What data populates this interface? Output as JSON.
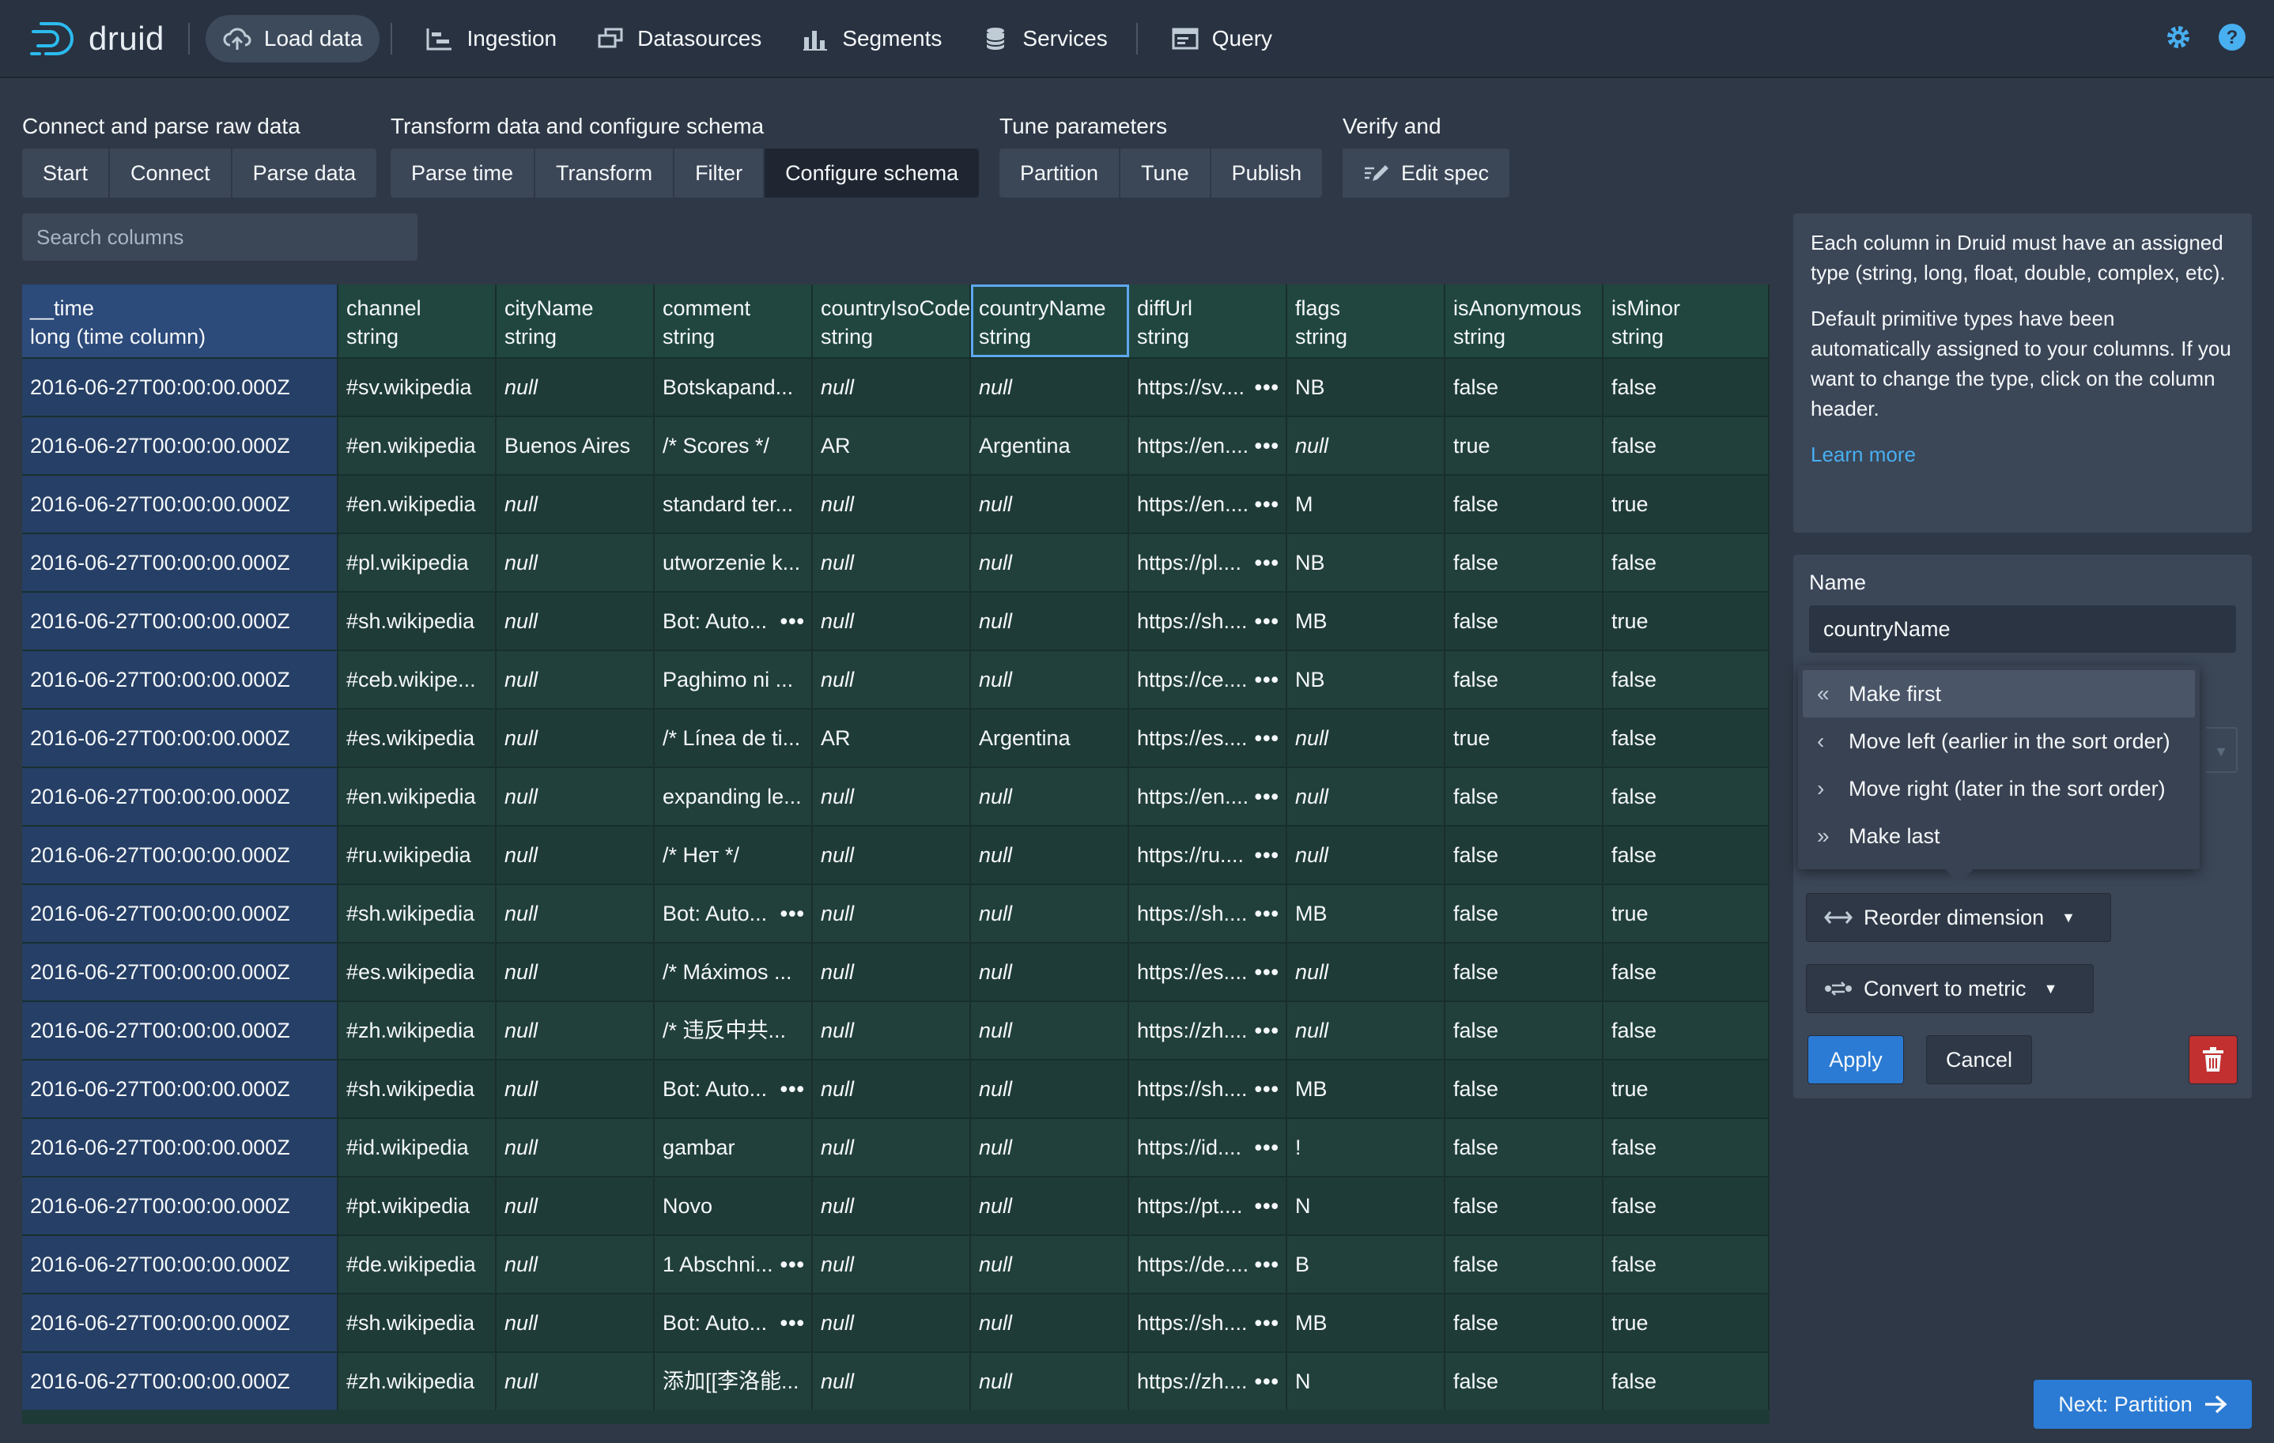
{
  "nav": {
    "logo_text": "druid",
    "items": [
      {
        "label": "Load data",
        "icon": "cloud-upload-icon"
      },
      {
        "label": "Ingestion",
        "icon": "gantt-icon"
      },
      {
        "label": "Datasources",
        "icon": "multi-select-icon"
      },
      {
        "label": "Segments",
        "icon": "stacked-chart-icon"
      },
      {
        "label": "Services",
        "icon": "database-icon"
      },
      {
        "label": "Query",
        "icon": "application-icon"
      }
    ]
  },
  "steps": {
    "groups": [
      {
        "title": "Connect and parse raw data",
        "steps": [
          "Start",
          "Connect",
          "Parse data"
        ]
      },
      {
        "title": "Transform data and configure schema",
        "steps": [
          "Parse time",
          "Transform",
          "Filter",
          "Configure schema"
        ]
      },
      {
        "title": "Tune parameters",
        "steps": [
          "Partition",
          "Tune",
          "Publish"
        ]
      },
      {
        "title": "Verify and submit",
        "steps": [
          "Edit spec"
        ]
      }
    ],
    "active": "Configure schema"
  },
  "search": {
    "placeholder": "Search columns"
  },
  "table": {
    "columns": [
      {
        "name": "__time",
        "type": "long (time column)"
      },
      {
        "name": "channel",
        "type": "string"
      },
      {
        "name": "cityName",
        "type": "string"
      },
      {
        "name": "comment",
        "type": "string"
      },
      {
        "name": "countryIsoCode",
        "type": "string"
      },
      {
        "name": "countryName",
        "type": "string"
      },
      {
        "name": "diffUrl",
        "type": "string"
      },
      {
        "name": "flags",
        "type": "string"
      },
      {
        "name": "isAnonymous",
        "type": "string"
      },
      {
        "name": "isMinor",
        "type": "string"
      }
    ],
    "selected_column": "countryName",
    "rows": [
      [
        "2016-06-27T00:00:00.000Z",
        "#sv.wikipedia",
        "null",
        "Botskapand...",
        "null",
        "null",
        "https://sv....",
        "NB",
        "false",
        "false"
      ],
      [
        "2016-06-27T00:00:00.000Z",
        "#en.wikipedia",
        "Buenos Aires",
        "/* Scores */",
        "AR",
        "Argentina",
        "https://en....",
        "null",
        "true",
        "false"
      ],
      [
        "2016-06-27T00:00:00.000Z",
        "#en.wikipedia",
        "null",
        "standard ter...",
        "null",
        "null",
        "https://en....",
        "M",
        "false",
        "true"
      ],
      [
        "2016-06-27T00:00:00.000Z",
        "#pl.wikipedia",
        "null",
        "utworzenie k...",
        "null",
        "null",
        "https://pl....",
        "NB",
        "false",
        "false"
      ],
      [
        "2016-06-27T00:00:00.000Z",
        "#sh.wikipedia",
        "null",
        "Bot: Auto...",
        "null",
        "null",
        "https://sh....",
        "MB",
        "false",
        "true"
      ],
      [
        "2016-06-27T00:00:00.000Z",
        "#ceb.wikipe...",
        "null",
        "Paghimo ni ...",
        "null",
        "null",
        "https://ce....",
        "NB",
        "false",
        "false"
      ],
      [
        "2016-06-27T00:00:00.000Z",
        "#es.wikipedia",
        "null",
        "/* Línea de ti...",
        "AR",
        "Argentina",
        "https://es....",
        "null",
        "true",
        "false"
      ],
      [
        "2016-06-27T00:00:00.000Z",
        "#en.wikipedia",
        "null",
        "expanding le...",
        "null",
        "null",
        "https://en....",
        "null",
        "false",
        "false"
      ],
      [
        "2016-06-27T00:00:00.000Z",
        "#ru.wikipedia",
        "null",
        "/* Нет */",
        "null",
        "null",
        "https://ru....",
        "null",
        "false",
        "false"
      ],
      [
        "2016-06-27T00:00:00.000Z",
        "#sh.wikipedia",
        "null",
        "Bot: Auto...",
        "null",
        "null",
        "https://sh....",
        "MB",
        "false",
        "true"
      ],
      [
        "2016-06-27T00:00:00.000Z",
        "#es.wikipedia",
        "null",
        "/* Máximos ...",
        "null",
        "null",
        "https://es....",
        "null",
        "false",
        "false"
      ],
      [
        "2016-06-27T00:00:00.000Z",
        "#zh.wikipedia",
        "null",
        "/* 违反中共...",
        "null",
        "null",
        "https://zh....",
        "null",
        "false",
        "false"
      ],
      [
        "2016-06-27T00:00:00.000Z",
        "#sh.wikipedia",
        "null",
        "Bot: Auto...",
        "null",
        "null",
        "https://sh....",
        "MB",
        "false",
        "true"
      ],
      [
        "2016-06-27T00:00:00.000Z",
        "#id.wikipedia",
        "null",
        "gambar",
        "null",
        "null",
        "https://id....",
        "!",
        "false",
        "false"
      ],
      [
        "2016-06-27T00:00:00.000Z",
        "#pt.wikipedia",
        "null",
        "Novo",
        "null",
        "null",
        "https://pt....",
        "N",
        "false",
        "false"
      ],
      [
        "2016-06-27T00:00:00.000Z",
        "#de.wikipedia",
        "null",
        "1 Abschni...",
        "null",
        "null",
        "https://de....",
        "B",
        "false",
        "false"
      ],
      [
        "2016-06-27T00:00:00.000Z",
        "#sh.wikipedia",
        "null",
        "Bot: Auto...",
        "null",
        "null",
        "https://sh....",
        "MB",
        "false",
        "true"
      ],
      [
        "2016-06-27T00:00:00.000Z",
        "#zh.wikipedia",
        "null",
        "添加[[李洛能...",
        "null",
        "null",
        "https://zh....",
        "N",
        "false",
        "false"
      ]
    ],
    "more_cells": [
      [
        0,
        6
      ],
      [
        1,
        6
      ],
      [
        2,
        6
      ],
      [
        3,
        6
      ],
      [
        4,
        3
      ],
      [
        4,
        6
      ],
      [
        5,
        6
      ],
      [
        6,
        6
      ],
      [
        7,
        6
      ],
      [
        8,
        6
      ],
      [
        9,
        3
      ],
      [
        9,
        6
      ],
      [
        10,
        6
      ],
      [
        11,
        6
      ],
      [
        12,
        3
      ],
      [
        12,
        6
      ],
      [
        13,
        6
      ],
      [
        14,
        6
      ],
      [
        15,
        3
      ],
      [
        15,
        6
      ],
      [
        16,
        3
      ],
      [
        16,
        6
      ],
      [
        17,
        6
      ]
    ]
  },
  "info": {
    "p1": "Each column in Druid must have an assigned type (string, long, float, double, complex, etc).",
    "p2": "Default primitive types have been automatically assigned to your columns. If you want to change the type, click on the column header.",
    "learn_more": "Learn more"
  },
  "editor": {
    "name_label": "Name",
    "name_value": "countryName",
    "menu": [
      {
        "label": "Make first",
        "icon": "double-chevron-left-icon"
      },
      {
        "label": "Move left (earlier in the sort order)",
        "icon": "chevron-left-icon"
      },
      {
        "label": "Move right (later in the sort order)",
        "icon": "chevron-right-icon"
      },
      {
        "label": "Make last",
        "icon": "double-chevron-right-icon"
      }
    ],
    "reorder_label": "Reorder dimension",
    "convert_label": "Convert to metric",
    "apply_label": "Apply",
    "cancel_label": "Cancel"
  },
  "footer": {
    "next_label": "Next: Partition"
  },
  "colors": {
    "accent": "#2b7bd4",
    "danger": "#c23030",
    "link": "#48aff0",
    "time_col": "#2c4a7a"
  }
}
